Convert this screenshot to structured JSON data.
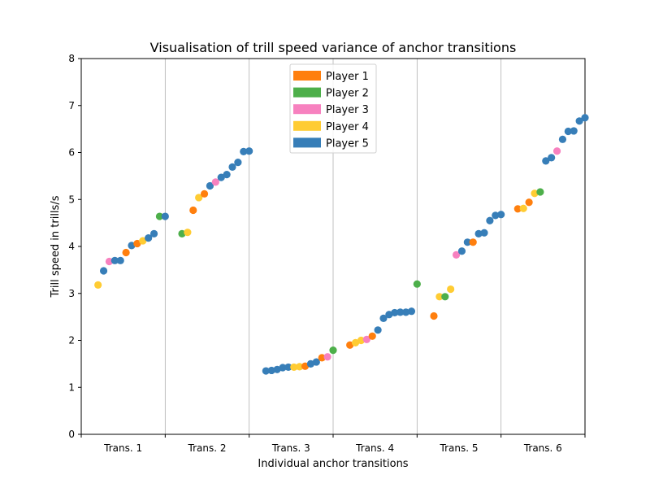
{
  "chart_data": {
    "type": "scatter",
    "title": "Visualisation of trill speed variance of anchor transitions",
    "xlabel": "Individual anchor transitions",
    "ylabel": "Trill speed in trills/s",
    "ylim": [
      0,
      8
    ],
    "yticks": [
      0,
      1,
      2,
      3,
      4,
      5,
      6,
      7,
      8
    ],
    "categories": [
      "Trans. 1",
      "Trans. 2",
      "Trans. 3",
      "Trans. 4",
      "Trans. 5",
      "Trans. 6"
    ],
    "grid": "vertical separators between categories",
    "legend_position": "top-center",
    "legend": [
      {
        "name": "Player 1",
        "color": "#ff7f0e"
      },
      {
        "name": "Player 2",
        "color": "#4daf4a"
      },
      {
        "name": "Player 3",
        "color": "#f781bf"
      },
      {
        "name": "Player 4",
        "color": "#ffcc33"
      },
      {
        "name": "Player 5",
        "color": "#377eb8"
      }
    ],
    "groups": [
      {
        "category": "Trans. 1",
        "points": [
          {
            "player": 4,
            "y": 3.18
          },
          {
            "player": 5,
            "y": 3.48
          },
          {
            "player": 3,
            "y": 3.68
          },
          {
            "player": 5,
            "y": 3.7
          },
          {
            "player": 5,
            "y": 3.7
          },
          {
            "player": 1,
            "y": 3.87
          },
          {
            "player": 5,
            "y": 4.02
          },
          {
            "player": 1,
            "y": 4.06
          },
          {
            "player": 4,
            "y": 4.12
          },
          {
            "player": 5,
            "y": 4.18
          },
          {
            "player": 5,
            "y": 4.27
          },
          {
            "player": 2,
            "y": 4.64
          },
          {
            "player": 5,
            "y": 4.64
          }
        ]
      },
      {
        "category": "Trans. 2",
        "points": [
          {
            "player": 2,
            "y": 4.27
          },
          {
            "player": 4,
            "y": 4.3
          },
          {
            "player": 1,
            "y": 4.77
          },
          {
            "player": 4,
            "y": 5.04
          },
          {
            "player": 1,
            "y": 5.12
          },
          {
            "player": 5,
            "y": 5.29
          },
          {
            "player": 3,
            "y": 5.37
          },
          {
            "player": 5,
            "y": 5.47
          },
          {
            "player": 5,
            "y": 5.53
          },
          {
            "player": 5,
            "y": 5.69
          },
          {
            "player": 5,
            "y": 5.79
          },
          {
            "player": 5,
            "y": 6.02
          },
          {
            "player": 5,
            "y": 6.03
          }
        ]
      },
      {
        "category": "Trans. 3",
        "points": [
          {
            "player": 5,
            "y": 1.35
          },
          {
            "player": 5,
            "y": 1.36
          },
          {
            "player": 5,
            "y": 1.38
          },
          {
            "player": 5,
            "y": 1.42
          },
          {
            "player": 5,
            "y": 1.43
          },
          {
            "player": 4,
            "y": 1.43
          },
          {
            "player": 4,
            "y": 1.44
          },
          {
            "player": 1,
            "y": 1.45
          },
          {
            "player": 5,
            "y": 1.5
          },
          {
            "player": 5,
            "y": 1.54
          },
          {
            "player": 1,
            "y": 1.63
          },
          {
            "player": 3,
            "y": 1.65
          },
          {
            "player": 2,
            "y": 1.79
          }
        ]
      },
      {
        "category": "Trans. 4",
        "points": [
          {
            "player": 1,
            "y": 1.9
          },
          {
            "player": 4,
            "y": 1.95
          },
          {
            "player": 4,
            "y": 2.0
          },
          {
            "player": 3,
            "y": 2.02
          },
          {
            "player": 1,
            "y": 2.09
          },
          {
            "player": 5,
            "y": 2.22
          },
          {
            "player": 5,
            "y": 2.47
          },
          {
            "player": 5,
            "y": 2.55
          },
          {
            "player": 5,
            "y": 2.59
          },
          {
            "player": 5,
            "y": 2.6
          },
          {
            "player": 5,
            "y": 2.6
          },
          {
            "player": 5,
            "y": 2.62
          },
          {
            "player": 2,
            "y": 3.2
          }
        ]
      },
      {
        "category": "Trans. 5",
        "points": [
          {
            "player": 1,
            "y": 2.52
          },
          {
            "player": 4,
            "y": 2.93
          },
          {
            "player": 2,
            "y": 2.93
          },
          {
            "player": 4,
            "y": 3.09
          },
          {
            "player": 3,
            "y": 3.82
          },
          {
            "player": 5,
            "y": 3.9
          },
          {
            "player": 5,
            "y": 4.09
          },
          {
            "player": 1,
            "y": 4.09
          },
          {
            "player": 5,
            "y": 4.27
          },
          {
            "player": 5,
            "y": 4.29
          },
          {
            "player": 5,
            "y": 4.55
          },
          {
            "player": 5,
            "y": 4.66
          },
          {
            "player": 5,
            "y": 4.68
          }
        ]
      },
      {
        "category": "Trans. 6",
        "points": [
          {
            "player": 1,
            "y": 4.8
          },
          {
            "player": 4,
            "y": 4.81
          },
          {
            "player": 1,
            "y": 4.94
          },
          {
            "player": 4,
            "y": 5.13
          },
          {
            "player": 2,
            "y": 5.16
          },
          {
            "player": 5,
            "y": 5.82
          },
          {
            "player": 5,
            "y": 5.89
          },
          {
            "player": 3,
            "y": 6.03
          },
          {
            "player": 5,
            "y": 6.28
          },
          {
            "player": 5,
            "y": 6.45
          },
          {
            "player": 5,
            "y": 6.46
          },
          {
            "player": 5,
            "y": 6.67
          },
          {
            "player": 5,
            "y": 6.74
          }
        ]
      }
    ]
  }
}
